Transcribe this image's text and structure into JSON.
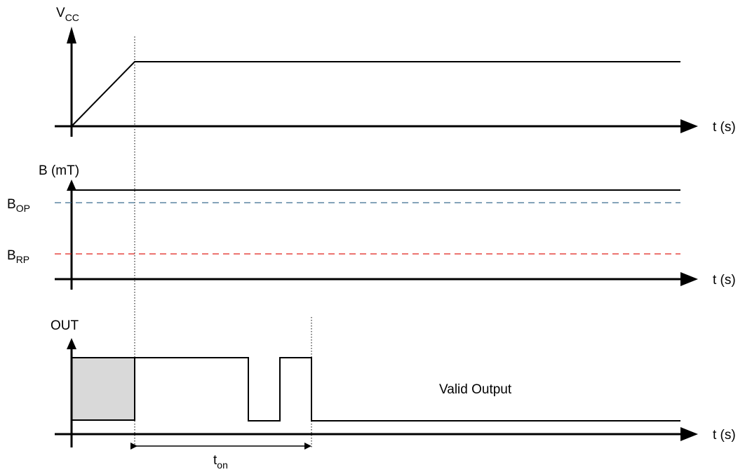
{
  "panels": {
    "vcc": {
      "axis_label_main": "V",
      "axis_label_sub": "CC",
      "time_label": "t (s)"
    },
    "field": {
      "axis_label": "B (mT)",
      "time_label": "t (s)",
      "bop_main": "B",
      "bop_sub": "OP",
      "bop_color": "#3B6E8F",
      "brp_main": "B",
      "brp_sub": "RP",
      "brp_color": "#E0201B"
    },
    "out": {
      "axis_label": "OUT",
      "time_label": "t (s)",
      "valid_label": "Valid Output",
      "undefined_fill": "#D9D9D9"
    }
  },
  "timing": {
    "ton_main": "t",
    "ton_sub": "on"
  }
}
